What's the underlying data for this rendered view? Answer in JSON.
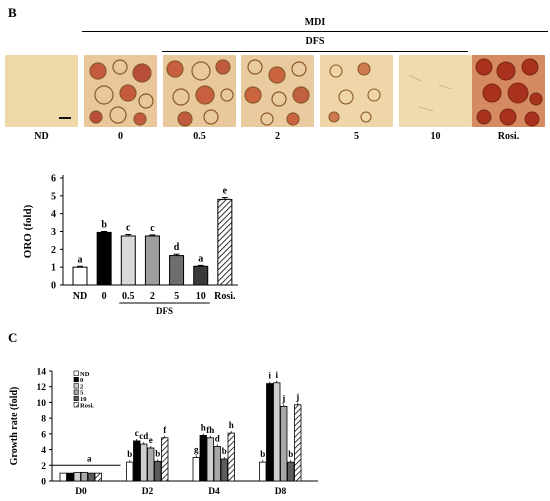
{
  "panel_b": {
    "label": "B",
    "mdi_label": "MDI",
    "dfs_label": "DFS",
    "images": [
      {
        "label": "ND"
      },
      {
        "label": "0"
      },
      {
        "label": "0.5"
      },
      {
        "label": "2"
      },
      {
        "label": "5"
      },
      {
        "label": "10"
      },
      {
        "label": "Rosi."
      }
    ]
  },
  "panel_c": {
    "label": "C"
  },
  "chart_data": [
    {
      "type": "bar",
      "title": "",
      "xlabel": "",
      "ylabel": "ORO (fold)",
      "ylim": [
        0,
        6
      ],
      "yticks": [
        "0",
        "1",
        "2",
        "3",
        "4",
        "5",
        "6"
      ],
      "categories": [
        "ND",
        "0",
        "0.5",
        "2",
        "5",
        "10",
        "Rosi."
      ],
      "values": [
        1.0,
        2.95,
        2.75,
        2.75,
        1.65,
        1.05,
        4.8
      ],
      "errors": [
        0.05,
        0.05,
        0.08,
        0.06,
        0.08,
        0.05,
        0.1
      ],
      "letters": [
        "a",
        "b",
        "c",
        "c",
        "d",
        "a",
        "e"
      ],
      "group_label": "DFS",
      "fills": [
        "#ffffff",
        "#000000",
        "#d9d9d9",
        "#9e9e9e",
        "#6e6e6e",
        "#3a3a3a",
        "hatch"
      ]
    },
    {
      "type": "bar",
      "title": "",
      "xlabel": "",
      "ylabel": "Growth rate (fold)",
      "ylim": [
        0,
        14
      ],
      "yticks": [
        "0",
        "2",
        "4",
        "6",
        "8",
        "10",
        "12",
        "14"
      ],
      "categories": [
        "D0",
        "D2",
        "D4",
        "D8"
      ],
      "series": [
        {
          "name": "ND",
          "values": [
            1.0,
            2.4,
            3.0,
            2.4
          ]
        },
        {
          "name": "0",
          "values": [
            1.0,
            5.1,
            5.8,
            12.4
          ]
        },
        {
          "name": "2",
          "values": [
            1.1,
            4.7,
            5.5,
            12.5
          ]
        },
        {
          "name": "5",
          "values": [
            1.1,
            4.2,
            4.4,
            9.5
          ]
        },
        {
          "name": "10",
          "values": [
            1.0,
            2.5,
            2.8,
            2.4
          ]
        },
        {
          "name": "Rosi.",
          "values": [
            1.0,
            5.5,
            6.1,
            9.7
          ]
        }
      ],
      "letters": [
        [
          "",
          "",
          "",
          "",
          "",
          ""
        ],
        [
          "b",
          "c",
          "cd",
          "e",
          "b",
          "f"
        ],
        [
          "g",
          "h",
          "fh",
          "d",
          "b",
          "h"
        ],
        [
          "b",
          "i",
          "i",
          "j",
          "b",
          "j"
        ]
      ],
      "d0_group_letter": "a",
      "fills": [
        "#ffffff",
        "#000000",
        "#cfcfcf",
        "#a8a8a8",
        "#5c5c5c",
        "hatch"
      ]
    }
  ]
}
